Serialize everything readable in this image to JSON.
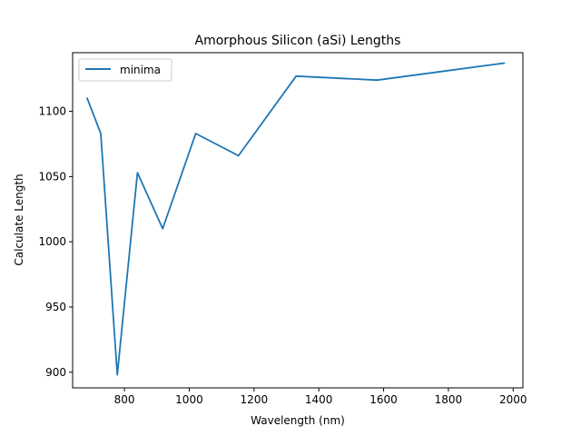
{
  "chart_data": {
    "type": "line",
    "title": "Amorphous Silicon (aSi) Lengths",
    "xlabel": "Wavelength (nm)",
    "ylabel": "Calculate Length",
    "xlim": [
      640,
      2030
    ],
    "ylim": [
      888,
      1145
    ],
    "xticks": [
      800,
      1000,
      1200,
      1400,
      1600,
      1800,
      2000
    ],
    "xtick_labels": [
      "800",
      "1000",
      "1200",
      "1400",
      "1600",
      "1800",
      "2000"
    ],
    "yticks": [
      900,
      950,
      1000,
      1050,
      1100
    ],
    "ytick_labels": [
      "900",
      "950",
      "1000",
      "1050",
      "1100"
    ],
    "grid": false,
    "legend_position": "top-left",
    "series": [
      {
        "name": "minima",
        "color": "#1f77b4",
        "x": [
          685,
          727,
          778,
          840,
          918,
          1020,
          1152,
          1330,
          1580,
          1972
        ],
        "y": [
          1110,
          1083,
          898,
          1053,
          1010,
          1083,
          1066,
          1127,
          1124,
          1137
        ]
      }
    ]
  }
}
